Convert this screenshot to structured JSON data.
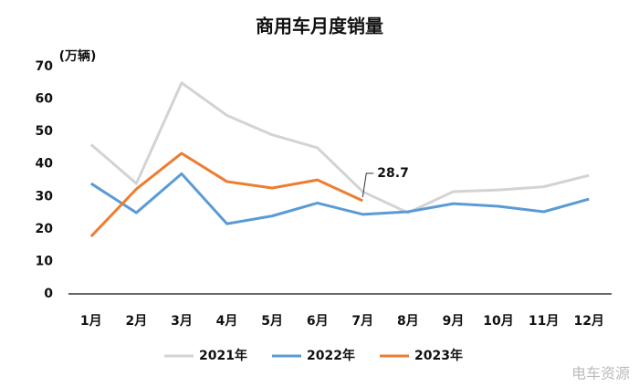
{
  "chart_data": {
    "type": "line",
    "title": "商用车月度销量",
    "y_label": "(万辆)",
    "categories": [
      "1月",
      "2月",
      "3月",
      "4月",
      "5月",
      "6月",
      "7月",
      "8月",
      "9月",
      "10月",
      "11月",
      "12月"
    ],
    "series": [
      {
        "name": "2021年",
        "color": "#d3d3d3",
        "values": [
          46,
          34,
          65,
          55,
          49,
          45,
          31.5,
          25,
          31.5,
          32,
          33,
          36.5
        ]
      },
      {
        "name": "2022年",
        "color": "#5b9bd5",
        "values": [
          34,
          25,
          37,
          21.6,
          24,
          28,
          24.5,
          25.3,
          27.8,
          27,
          25.3,
          29.2
        ]
      },
      {
        "name": "2023年",
        "color": "#ed7d31",
        "values": [
          17.7,
          32.3,
          43.3,
          34.6,
          32.6,
          35.1,
          28.7,
          null,
          null,
          null,
          null,
          null
        ]
      }
    ],
    "annotation": "28.7",
    "ylim": [
      0,
      70
    ],
    "yticks": [
      0,
      10,
      20,
      30,
      40,
      50,
      60,
      70
    ],
    "grid": false,
    "legend": "bottom",
    "watermark": "电车资源"
  }
}
